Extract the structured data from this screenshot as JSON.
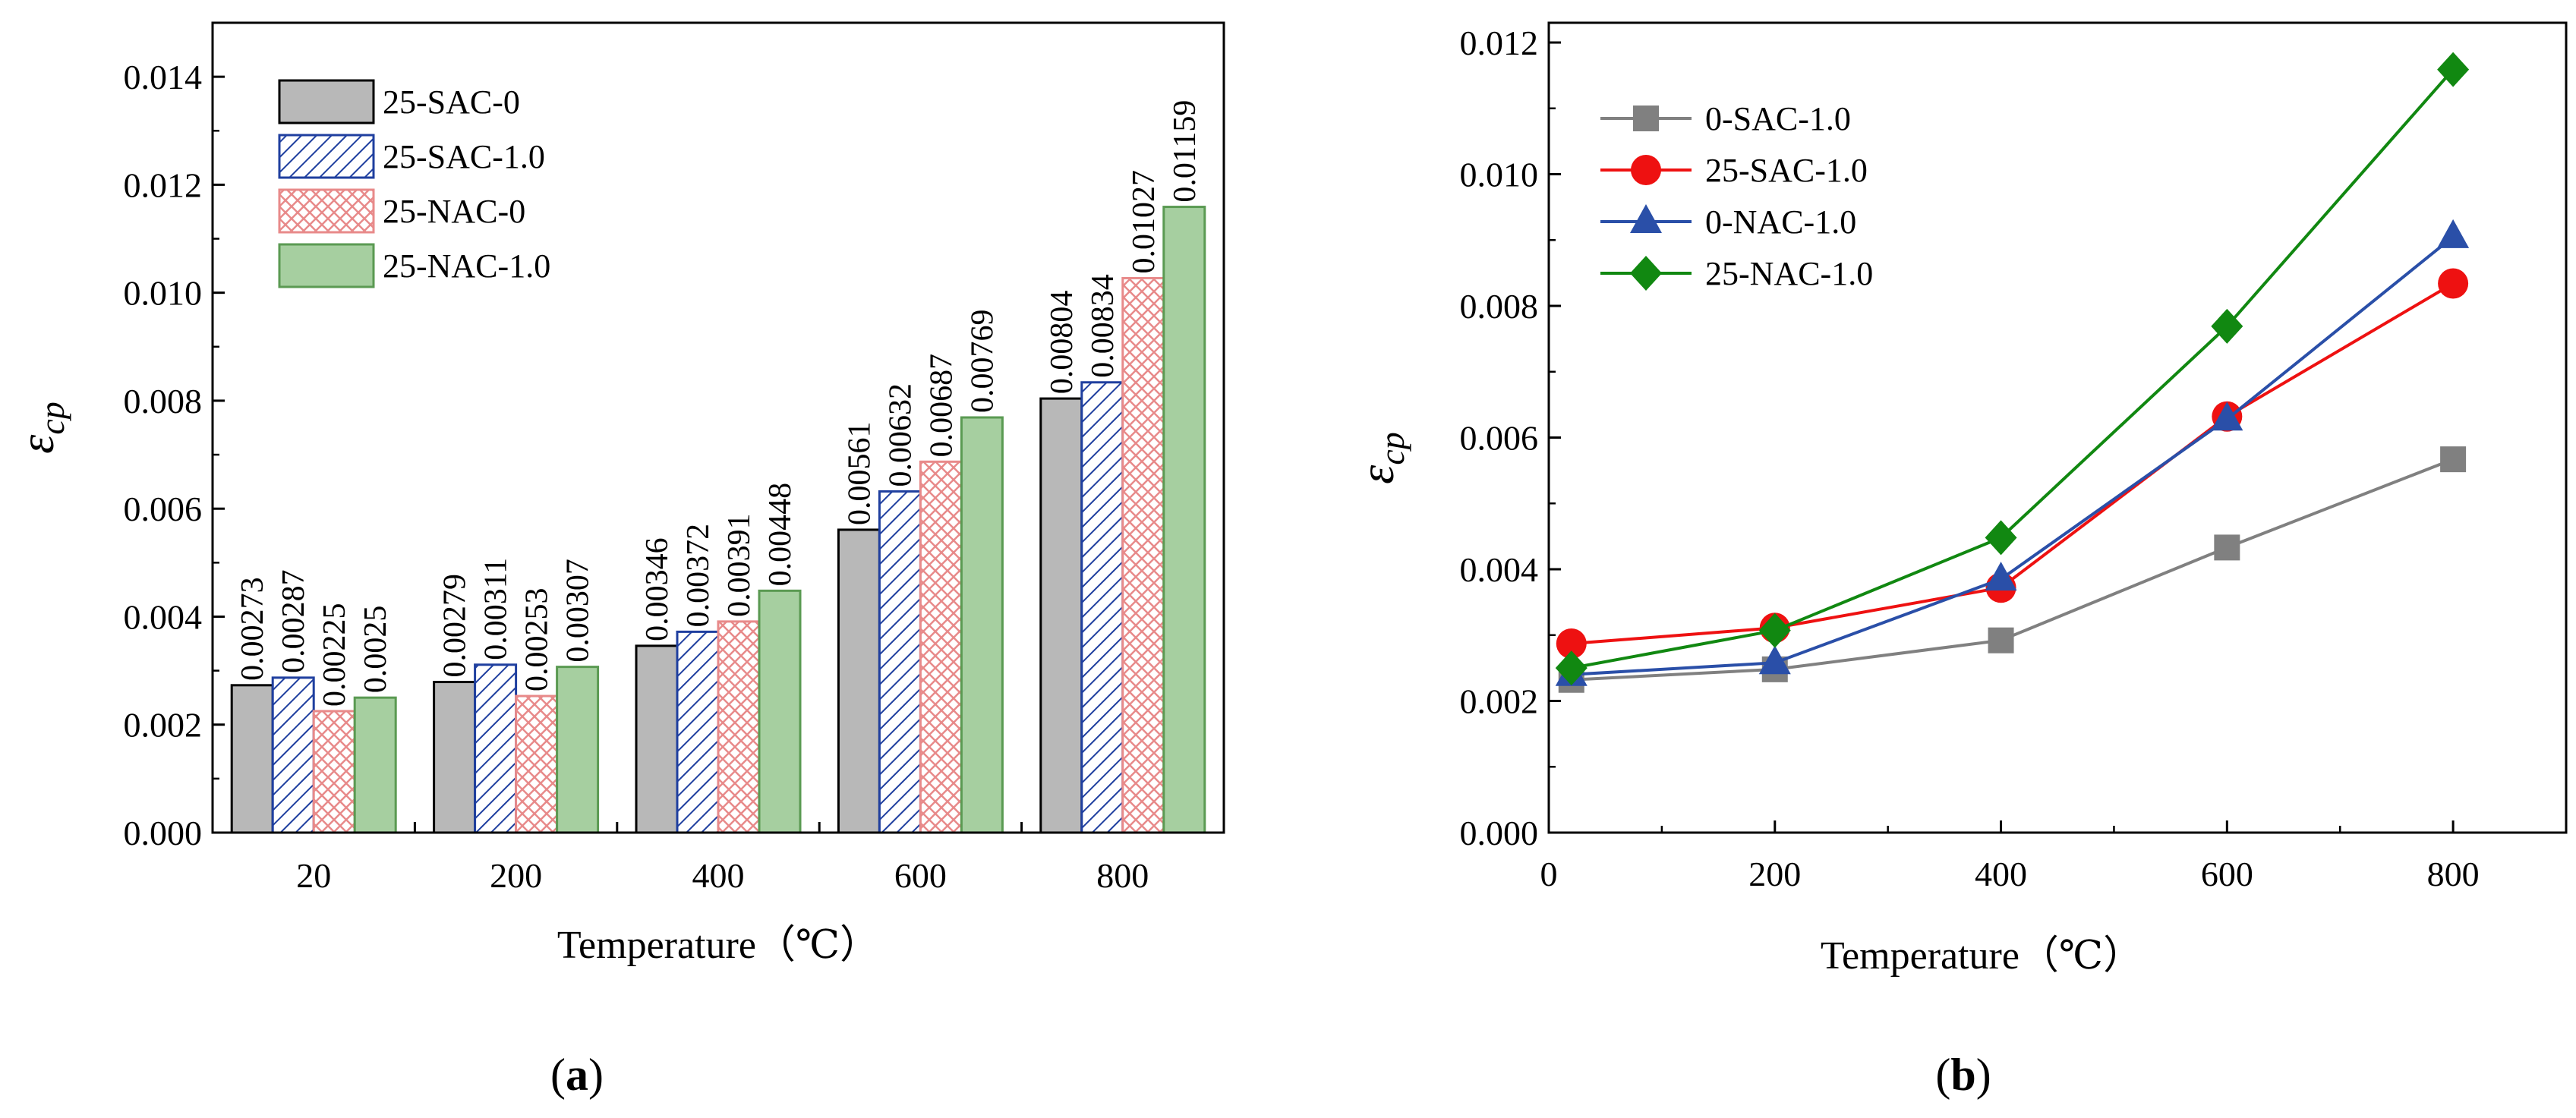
{
  "chart_data": [
    {
      "type": "bar",
      "panel_label": "(a)",
      "categories": [
        "20",
        "200",
        "400",
        "600",
        "800"
      ],
      "series": [
        {
          "name": "25-SAC-0",
          "values": [
            0.00273,
            0.00279,
            0.00346,
            0.00561,
            0.00804
          ],
          "labels": [
            "0.00273",
            "0.00279",
            "0.00346",
            "0.00561",
            "0.00804"
          ],
          "color": "#b8b8b8",
          "edge": "#000000",
          "pattern": "solid"
        },
        {
          "name": "25-SAC-1.0",
          "values": [
            0.00287,
            0.00311,
            0.00372,
            0.00632,
            0.00834
          ],
          "labels": [
            "0.00287",
            "0.00311",
            "0.00372",
            "0.00632",
            "0.00834"
          ],
          "color": "#1f3f9f",
          "edge": "#1f3f9f",
          "pattern": "diagonal"
        },
        {
          "name": "25-NAC-0",
          "values": [
            0.00225,
            0.00253,
            0.00391,
            0.00687,
            0.01027
          ],
          "labels": [
            "0.00225",
            "0.00253",
            "0.00391",
            "0.00687",
            "0.01027"
          ],
          "color": "#e88a8a",
          "edge": "#e88a8a",
          "pattern": "crosshatch"
        },
        {
          "name": "25-NAC-1.0",
          "values": [
            0.0025,
            0.00307,
            0.00448,
            0.00769,
            0.01159
          ],
          "labels": [
            "0.0025",
            "0.00307",
            "0.00448",
            "0.00769",
            "0.01159"
          ],
          "color": "#a6cfa0",
          "edge": "#5a9a52",
          "pattern": "solid"
        }
      ],
      "xlabel": "Temperature（℃）",
      "ylabel": "ε",
      "ylabel_sub": "cp",
      "ylim": [
        0,
        0.015
      ],
      "yticks": [
        "0.000",
        "0.002",
        "0.004",
        "0.006",
        "0.008",
        "0.010",
        "0.012",
        "0.014"
      ],
      "legend": "top-left",
      "grid": false
    },
    {
      "type": "line",
      "panel_label": "(b)",
      "x": [
        20,
        200,
        400,
        600,
        800
      ],
      "series": [
        {
          "name": "0-SAC-1.0",
          "values": [
            0.00232,
            0.00248,
            0.00292,
            0.00433,
            0.00567
          ],
          "color": "#808080",
          "marker": "square"
        },
        {
          "name": "25-SAC-1.0",
          "values": [
            0.00287,
            0.00311,
            0.00372,
            0.00632,
            0.00834
          ],
          "color": "#ee1111",
          "marker": "circle"
        },
        {
          "name": "0-NAC-1.0",
          "values": [
            0.0024,
            0.00258,
            0.00385,
            0.00628,
            0.00905
          ],
          "color": "#2a4fa8",
          "marker": "triangle"
        },
        {
          "name": "25-NAC-1.0",
          "values": [
            0.0025,
            0.00307,
            0.00448,
            0.00769,
            0.01159
          ],
          "color": "#118811",
          "marker": "diamond"
        }
      ],
      "xlabel": "Temperature（℃）",
      "ylabel": "ε",
      "ylabel_sub": "cp",
      "xlim": [
        0,
        900
      ],
      "xticks": [
        "0",
        "200",
        "400",
        "600",
        "800"
      ],
      "ylim": [
        0,
        0.0123
      ],
      "yticks": [
        "0.000",
        "0.002",
        "0.004",
        "0.006",
        "0.008",
        "0.010",
        "0.012"
      ],
      "legend": "top-left",
      "grid": false
    }
  ]
}
